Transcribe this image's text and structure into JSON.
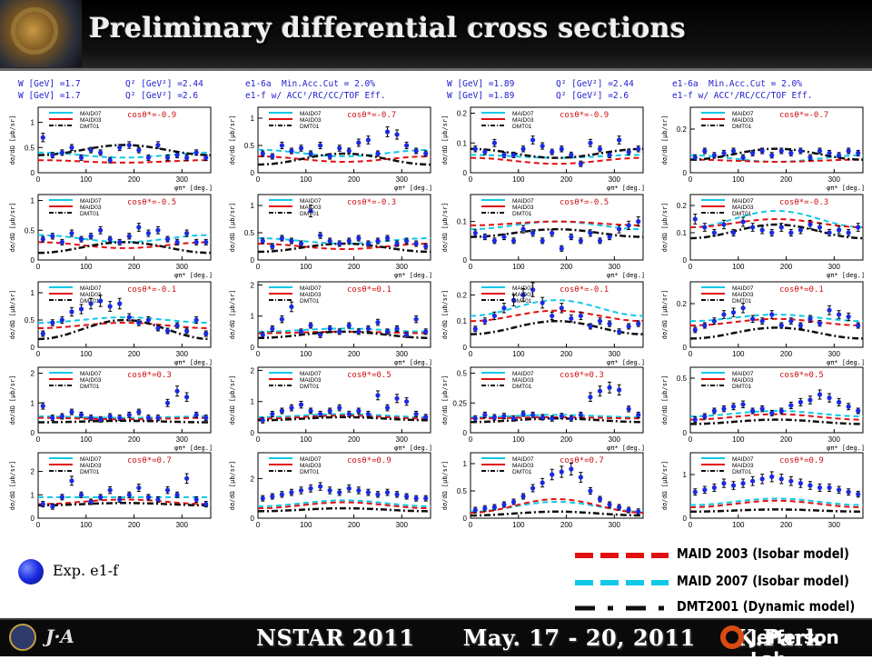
{
  "page": {
    "title": "Preliminary differential cross sections"
  },
  "headers": {
    "left": {
      "w_lines": [
        "W [GeV] =1.7",
        "W [GeV] =1.7"
      ],
      "q2_lines": [
        "Q² [GeV²] =2.44",
        "Q² [GeV²] =2.6"
      ],
      "run_lines": [
        "e1-6a  Min.Acc.Cut = 2.0%",
        "e1-f w/ ACCᶠ/RC/CC/TOF Eff."
      ]
    },
    "right": {
      "w_lines": [
        "W [GeV] =1.89",
        "W [GeV] =1.89"
      ],
      "q2_lines": [
        "Q² [GeV²] =2.44",
        "Q² [GeV²] =2.6"
      ],
      "run_lines": [
        "e1-6a  Min.Acc.Cut = 2.0%",
        "e1-f w/ ACCᶠ/RC/CC/TOF Eff."
      ]
    }
  },
  "panel_text": {
    "legend_labels": [
      "MAID07",
      "MAID03",
      "DMT01"
    ],
    "ylabel": "dσ/dΩ [μb/sr]",
    "xlabel": "φπ* [deg.]"
  },
  "colors": {
    "maid2003": "#e01010",
    "maid2007": "#10c8e8",
    "dmt2001": "#101010",
    "data": "#1a2ae0"
  },
  "chart_data": {
    "type": "scatter",
    "xlim": [
      0,
      360
    ],
    "xticks": [
      0,
      100,
      200,
      300
    ],
    "note_series": [
      "Exp. e1-f",
      "MAID 2003 (Isobar model)",
      "MAID 2007 (Isobar model)",
      "DMT2001 (Dynamic model)"
    ],
    "panels": [
      {
        "cos": "cosθ*=-0.9",
        "yticks": [
          0,
          0.5,
          1
        ],
        "ymax": 1.3,
        "data": [
          0.7,
          0.35,
          0.4,
          0.5,
          0.3,
          0.45,
          0.4,
          0.25,
          0.5,
          0.55,
          0.45,
          0.3,
          0.55,
          0.3,
          0.35,
          0.3,
          0.4,
          0.3
        ],
        "maid07": [
          0.4,
          0.3
        ],
        "maid03": [
          0.25,
          0.2
        ],
        "dmt": [
          0.35,
          0.55
        ]
      },
      {
        "cos": "cosθ*=-0.7",
        "yticks": [
          0,
          0.5,
          1
        ],
        "ymax": 1.2,
        "data": [
          0.35,
          0.3,
          0.5,
          0.4,
          0.45,
          0.35,
          0.5,
          0.3,
          0.45,
          0.4,
          0.55,
          0.6,
          0.35,
          0.75,
          0.7,
          0.5,
          0.4,
          0.35
        ],
        "maid07": [
          0.42,
          0.3
        ],
        "maid03": [
          0.3,
          0.2
        ],
        "dmt": [
          0.15,
          0.35
        ]
      },
      {
        "cos": "cosθ*=-0.9",
        "yticks": [
          0,
          0.1,
          0.2
        ],
        "ymax": 0.22,
        "data": [
          0.08,
          0.07,
          0.1,
          0.06,
          0.06,
          0.08,
          0.11,
          0.09,
          0.07,
          0.08,
          0.06,
          0.03,
          0.1,
          0.08,
          0.06,
          0.11,
          0.07,
          0.08
        ],
        "maid07": [
          0.06,
          0.05
        ],
        "maid03": [
          0.05,
          0.03
        ],
        "dmt": [
          0.08,
          0.05
        ]
      },
      {
        "cos": "cosθ*=-0.7",
        "yticks": [
          0,
          0.2
        ],
        "ymax": 0.3,
        "data": [
          0.07,
          0.1,
          0.08,
          0.09,
          0.1,
          0.07,
          0.09,
          0.1,
          0.08,
          0.1,
          0.09,
          0.1,
          0.07,
          0.1,
          0.09,
          0.08,
          0.1,
          0.09
        ],
        "maid07": [
          0.08,
          0.05
        ],
        "maid03": [
          0.06,
          0.05
        ],
        "dmt": [
          0.06,
          0.11
        ]
      },
      {
        "cos": "cosθ*=-0.5",
        "yticks": [
          0,
          0.5,
          1
        ],
        "ymax": 1.1,
        "data": [
          0.35,
          0.4,
          0.3,
          0.45,
          0.35,
          0.4,
          0.5,
          0.35,
          0.3,
          0.4,
          0.55,
          0.45,
          0.5,
          0.35,
          0.3,
          0.45,
          0.3,
          0.3
        ],
        "maid07": [
          0.42,
          0.3
        ],
        "maid03": [
          0.3,
          0.2
        ],
        "dmt": [
          0.12,
          0.3
        ]
      },
      {
        "cos": "cosθ*=-0.3",
        "yticks": [
          0,
          0.5,
          1
        ],
        "ymax": 1.2,
        "data": [
          0.35,
          0.25,
          0.4,
          0.35,
          0.3,
          0.9,
          0.45,
          0.35,
          0.3,
          0.35,
          0.4,
          0.3,
          0.35,
          0.4,
          0.3,
          0.35,
          0.3,
          0.25
        ],
        "maid07": [
          0.4,
          0.3
        ],
        "maid03": [
          0.3,
          0.2
        ],
        "dmt": [
          0.15,
          0.3
        ]
      },
      {
        "cos": "cosθ*=-0.5",
        "yticks": [
          0,
          0.1
        ],
        "ymax": 0.17,
        "data": [
          0.07,
          0.06,
          0.05,
          0.06,
          0.05,
          0.08,
          0.07,
          0.05,
          0.07,
          0.03,
          0.06,
          0.05,
          0.07,
          0.05,
          0.06,
          0.08,
          0.09,
          0.1
        ],
        "maid07": [
          0.08,
          0.1
        ],
        "maid03": [
          0.09,
          0.1
        ],
        "dmt": [
          0.06,
          0.08
        ]
      },
      {
        "cos": "cosθ*=-0.3",
        "yticks": [
          0,
          0.1,
          0.2
        ],
        "ymax": 0.24,
        "data": [
          0.15,
          0.12,
          0.1,
          0.13,
          0.1,
          0.14,
          0.12,
          0.11,
          0.1,
          0.12,
          0.1,
          0.11,
          0.13,
          0.12,
          0.1,
          0.11,
          0.1,
          0.12
        ],
        "maid07": [
          0.12,
          0.18
        ],
        "maid03": [
          0.12,
          0.15
        ],
        "dmt": [
          0.08,
          0.13
        ]
      },
      {
        "cos": "cosθ*=-0.1",
        "yticks": [
          0,
          0.5,
          1
        ],
        "ymax": 1.2,
        "data": [
          0.25,
          0.45,
          0.5,
          0.65,
          0.7,
          0.8,
          0.85,
          0.75,
          0.8,
          0.55,
          0.45,
          0.5,
          0.35,
          0.3,
          0.4,
          0.3,
          0.5,
          0.25
        ],
        "maid07": [
          0.45,
          0.55
        ],
        "maid03": [
          0.35,
          0.45
        ],
        "dmt": [
          0.15,
          0.5
        ]
      },
      {
        "cos": "cosθ*=0.1",
        "yticks": [
          0,
          1,
          2
        ],
        "ymax": 2.1,
        "data": [
          0.4,
          0.6,
          0.9,
          1.3,
          0.5,
          0.7,
          0.4,
          0.6,
          0.5,
          0.7,
          0.5,
          0.6,
          0.8,
          0.5,
          0.6,
          0.4,
          0.9,
          0.5
        ],
        "maid07": [
          0.5,
          0.6
        ],
        "maid03": [
          0.45,
          0.5
        ],
        "dmt": [
          0.3,
          0.5
        ]
      },
      {
        "cos": "cosθ*=-0.1",
        "yticks": [
          0,
          0.1,
          0.2
        ],
        "ymax": 0.25,
        "data": [
          0.07,
          0.1,
          0.12,
          0.15,
          0.18,
          0.2,
          0.22,
          0.17,
          0.12,
          0.15,
          0.11,
          0.12,
          0.08,
          0.1,
          0.09,
          0.06,
          0.08,
          0.09
        ],
        "maid07": [
          0.12,
          0.18
        ],
        "maid03": [
          0.1,
          0.14
        ],
        "dmt": [
          0.05,
          0.1
        ]
      },
      {
        "cos": "cosθ*=0.1",
        "yticks": [
          0,
          0.2
        ],
        "ymax": 0.3,
        "data": [
          0.08,
          0.1,
          0.12,
          0.15,
          0.16,
          0.18,
          0.13,
          0.12,
          0.15,
          0.1,
          0.12,
          0.1,
          0.13,
          0.11,
          0.17,
          0.15,
          0.14,
          0.1
        ],
        "maid07": [
          0.12,
          0.15
        ],
        "maid03": [
          0.1,
          0.13
        ],
        "dmt": [
          0.04,
          0.09
        ]
      },
      {
        "cos": "cosθ*=0.3",
        "yticks": [
          0,
          1,
          2
        ],
        "ymax": 2.2,
        "data": [
          0.9,
          0.5,
          0.55,
          0.7,
          0.6,
          0.5,
          0.45,
          0.55,
          0.5,
          0.6,
          0.7,
          0.5,
          0.5,
          1.0,
          1.4,
          1.2,
          0.6,
          0.5
        ],
        "maid07": [
          0.55,
          0.5
        ],
        "maid03": [
          0.5,
          0.45
        ],
        "dmt": [
          0.35,
          0.4
        ]
      },
      {
        "cos": "cosθ*=0.5",
        "yticks": [
          0,
          1,
          2
        ],
        "ymax": 2.1,
        "data": [
          0.4,
          0.6,
          0.7,
          0.8,
          0.9,
          0.7,
          0.6,
          0.7,
          0.8,
          0.6,
          0.7,
          0.6,
          1.2,
          0.8,
          1.1,
          1.0,
          0.6,
          0.5
        ],
        "maid07": [
          0.5,
          0.6
        ],
        "maid03": [
          0.45,
          0.55
        ],
        "dmt": [
          0.4,
          0.5
        ]
      },
      {
        "cos": "cosθ*=0.3",
        "yticks": [
          0,
          0.25,
          0.5
        ],
        "ymax": 0.55,
        "data": [
          0.12,
          0.15,
          0.13,
          0.14,
          0.12,
          0.16,
          0.15,
          0.13,
          0.12,
          0.14,
          0.12,
          0.15,
          0.3,
          0.35,
          0.38,
          0.36,
          0.2,
          0.15
        ],
        "maid07": [
          0.13,
          0.15
        ],
        "maid03": [
          0.12,
          0.13
        ],
        "dmt": [
          0.09,
          0.12
        ]
      },
      {
        "cos": "cosθ*=0.5",
        "yticks": [
          0,
          0.5
        ],
        "ymax": 0.6,
        "data": [
          0.12,
          0.15,
          0.2,
          0.22,
          0.24,
          0.26,
          0.2,
          0.22,
          0.18,
          0.2,
          0.25,
          0.28,
          0.3,
          0.35,
          0.32,
          0.28,
          0.24,
          0.2
        ],
        "maid07": [
          0.15,
          0.2
        ],
        "maid03": [
          0.12,
          0.17
        ],
        "dmt": [
          0.08,
          0.12
        ]
      },
      {
        "cos": "cosθ*=0.7",
        "yticks": [
          0,
          1,
          2
        ],
        "ymax": 2.8,
        "data": [
          0.6,
          0.5,
          0.9,
          1.6,
          1.0,
          0.7,
          0.9,
          1.2,
          0.8,
          1.0,
          1.3,
          0.9,
          0.8,
          1.2,
          1.0,
          1.7,
          0.8,
          0.6
        ],
        "maid07": [
          0.9,
          0.9
        ],
        "maid03": [
          0.6,
          0.8
        ],
        "dmt": [
          0.55,
          0.65
        ]
      },
      {
        "cos": "cosθ*=0.9",
        "yticks": [
          0,
          2
        ],
        "ymax": 3.3,
        "data": [
          1.0,
          1.1,
          1.2,
          1.3,
          1.4,
          1.5,
          1.6,
          1.4,
          1.3,
          1.5,
          1.4,
          1.3,
          1.2,
          1.3,
          1.2,
          1.1,
          1.0,
          1.0
        ],
        "maid07": [
          0.6,
          0.9
        ],
        "maid03": [
          0.5,
          0.8
        ],
        "dmt": [
          0.35,
          0.5
        ]
      },
      {
        "cos": "cosθ*=0.7",
        "yticks": [
          0,
          0.5,
          1
        ],
        "ymax": 1.2,
        "data": [
          0.15,
          0.18,
          0.2,
          0.25,
          0.3,
          0.4,
          0.55,
          0.65,
          0.8,
          0.85,
          0.9,
          0.75,
          0.5,
          0.35,
          0.25,
          0.2,
          0.15,
          0.12
        ],
        "maid07": [
          0.12,
          0.3
        ],
        "maid03": [
          0.1,
          0.35
        ],
        "dmt": [
          0.05,
          0.12
        ]
      },
      {
        "cos": "cosθ*=0.9",
        "yticks": [
          0,
          1
        ],
        "ymax": 1.5,
        "data": [
          0.6,
          0.65,
          0.7,
          0.8,
          0.75,
          0.8,
          0.85,
          0.9,
          0.95,
          0.9,
          0.85,
          0.8,
          0.75,
          0.7,
          0.7,
          0.65,
          0.6,
          0.55
        ],
        "maid07": [
          0.3,
          0.45
        ],
        "maid03": [
          0.25,
          0.4
        ],
        "dmt": [
          0.15,
          0.2
        ]
      }
    ]
  },
  "legend": {
    "exp_label": "Exp. e1-f",
    "models": [
      "MAID 2003 (Isobar model)",
      "MAID 2007 (Isobar model)",
      "DMT2001 (Dynamic model)"
    ]
  },
  "footer": {
    "conference": "NSTAR 2011",
    "dates": "May. 17 - 20, 2011",
    "speaker": "K.Park",
    "lab": "Jefferson Lab",
    "jpa_logo": "J·A"
  }
}
